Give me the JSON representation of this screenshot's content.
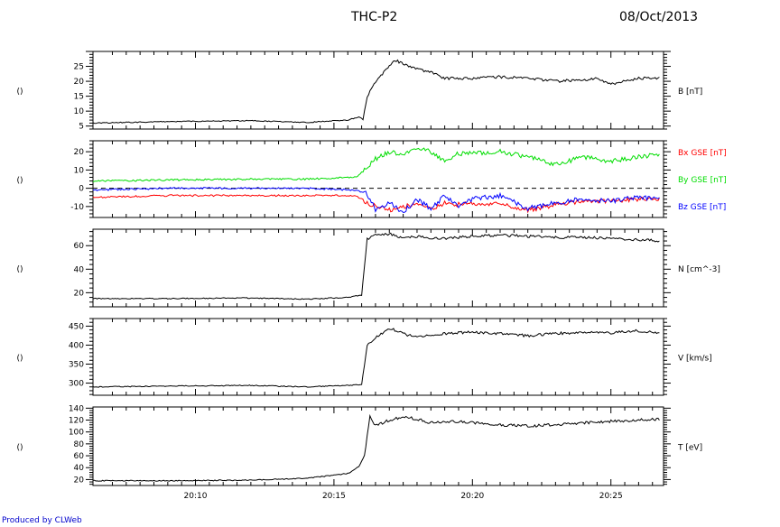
{
  "header": {
    "title": "THC-P2",
    "date": "08/Oct/2013"
  },
  "credit": "Produced by CLWeb",
  "chart_data": [
    {
      "type": "line",
      "left_label": "()",
      "ylim": [
        4,
        30
      ],
      "yticks": [
        5,
        10,
        15,
        20,
        25
      ],
      "series": [
        {
          "name": "B [nT]",
          "color": "#000000",
          "t": [
            6.3,
            9,
            12,
            14,
            15.5,
            15.9,
            16.05,
            16.2,
            16.5,
            16.8,
            17.2,
            17.5,
            18,
            18.5,
            19,
            19.5,
            20,
            21,
            22,
            23,
            24,
            24.5,
            25,
            25.5,
            26,
            26.8
          ],
          "y": [
            6,
            6.5,
            6.8,
            6.2,
            7,
            8,
            7.2,
            15,
            20,
            23,
            27,
            26,
            24,
            23,
            21,
            21,
            21,
            21.5,
            21,
            20,
            20.5,
            21,
            19,
            20,
            21,
            21
          ]
        }
      ]
    },
    {
      "type": "line",
      "left_label": "()",
      "ylim": [
        -16,
        26
      ],
      "yticks": [
        -10,
        0,
        10,
        20
      ],
      "dashed_zero": true,
      "series": [
        {
          "name": "Bx GSE [nT]",
          "color": "#ff0000",
          "t": [
            6.3,
            9,
            12,
            14,
            15.8,
            16.2,
            16.5,
            17,
            17.5,
            18,
            18.5,
            19,
            19.5,
            20,
            21,
            22,
            23,
            24,
            25,
            26,
            26.8
          ],
          "y": [
            -5,
            -4,
            -4,
            -4,
            -4,
            -8,
            -10,
            -12,
            -10,
            -9,
            -11,
            -8,
            -9,
            -8,
            -9,
            -12,
            -9,
            -7,
            -7,
            -6,
            -6
          ]
        },
        {
          "name": "By GSE [nT]",
          "color": "#00dd00",
          "t": [
            6.3,
            9,
            12,
            14,
            15.8,
            16.2,
            16.5,
            17,
            17.5,
            18,
            18.5,
            19,
            19.5,
            20,
            21,
            22,
            23,
            24,
            25,
            26,
            26.8
          ],
          "y": [
            4,
            4.5,
            5,
            5,
            6,
            11,
            16,
            20,
            18,
            22,
            20,
            15,
            19,
            19,
            20,
            17,
            13,
            17,
            15,
            17,
            19
          ]
        },
        {
          "name": "Bz GSE [nT]",
          "color": "#0000ff",
          "t": [
            6.3,
            9,
            12,
            14,
            15.8,
            16.2,
            16.5,
            17,
            17.5,
            18,
            18.5,
            19,
            19.5,
            20,
            21,
            22,
            23,
            24,
            25,
            26,
            26.8
          ],
          "y": [
            -1,
            0,
            0,
            0,
            -1,
            -3,
            -12,
            -8,
            -13,
            -6,
            -11,
            -4,
            -10,
            -6,
            -4,
            -11,
            -8,
            -6,
            -7,
            -5,
            -6
          ]
        }
      ]
    },
    {
      "type": "line",
      "left_label": "()",
      "ylim": [
        8,
        74
      ],
      "yticks": [
        20,
        40,
        60
      ],
      "series": [
        {
          "name": "N [cm^-3]",
          "color": "#000000",
          "t": [
            6.3,
            9,
            12,
            14,
            15.5,
            16.0,
            16.2,
            16.5,
            17,
            17.5,
            18,
            18.5,
            19,
            20,
            21,
            22,
            23,
            24,
            25,
            26,
            26.8
          ],
          "y": [
            15,
            15,
            15.5,
            14.5,
            16,
            18,
            66,
            69,
            70,
            66,
            68,
            66,
            66,
            68,
            69,
            68,
            67,
            67,
            66,
            65,
            64
          ]
        }
      ]
    },
    {
      "type": "line",
      "left_label": "()",
      "ylim": [
        268,
        470
      ],
      "yticks": [
        300,
        350,
        400,
        450
      ],
      "series": [
        {
          "name": "V [km/s]",
          "color": "#000000",
          "t": [
            6.3,
            9,
            12,
            14,
            15.5,
            16.0,
            16.2,
            16.5,
            17,
            17.5,
            18,
            18.5,
            19,
            20,
            21,
            22,
            23,
            24,
            25,
            26,
            26.8
          ],
          "y": [
            290,
            292,
            294,
            290,
            294,
            296,
            400,
            420,
            445,
            430,
            420,
            425,
            430,
            435,
            430,
            425,
            430,
            435,
            432,
            438,
            432
          ]
        }
      ]
    },
    {
      "type": "line",
      "left_label": "()",
      "ylim": [
        10,
        142
      ],
      "yticks": [
        20,
        40,
        60,
        80,
        100,
        120,
        140
      ],
      "series": [
        {
          "name": "T [eV]",
          "color": "#000000",
          "t": [
            6.3,
            9,
            12,
            14,
            15.5,
            15.9,
            16.1,
            16.3,
            16.5,
            17,
            17.5,
            18,
            18.5,
            19,
            20,
            21,
            22,
            23,
            24,
            25,
            26,
            26.8
          ],
          "y": [
            18,
            18,
            19,
            22,
            30,
            42,
            60,
            125,
            110,
            120,
            125,
            122,
            115,
            118,
            116,
            112,
            110,
            112,
            115,
            118,
            120,
            122
          ]
        }
      ]
    }
  ],
  "x_axis": {
    "range": [
      6.3,
      26.9
    ],
    "tick_values": [
      10,
      15,
      20,
      25
    ],
    "tick_labels": [
      "20:10",
      "20:15",
      "20:20",
      "20:25"
    ]
  }
}
